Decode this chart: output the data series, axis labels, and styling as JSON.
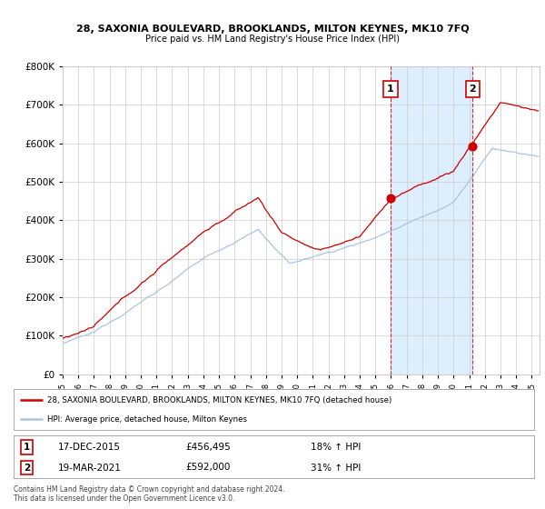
{
  "title_line1": "28, SAXONIA BOULEVARD, BROOKLANDS, MILTON KEYNES, MK10 7FQ",
  "title_line2": "Price paid vs. HM Land Registry's House Price Index (HPI)",
  "sale1_date_num": 2015.96,
  "sale1_price": 456495,
  "sale1_label": "17-DEC-2015",
  "sale1_price_str": "£456,495",
  "sale1_pct": "18% ↑ HPI",
  "sale2_date_num": 2021.22,
  "sale2_price": 592000,
  "sale2_label": "19-MAR-2021",
  "sale2_price_str": "£592,000",
  "sale2_pct": "31% ↑ HPI",
  "legend1": "28, SAXONIA BOULEVARD, BROOKLANDS, MILTON KEYNES, MK10 7FQ (detached house)",
  "legend2": "HPI: Average price, detached house, Milton Keynes",
  "footnote1": "Contains HM Land Registry data © Crown copyright and database right 2024.",
  "footnote2": "This data is licensed under the Open Government Licence v3.0.",
  "hpi_color": "#aac4e0",
  "price_color": "#cc0000",
  "shade_color": "#ddeeff",
  "grid_color": "#cccccc",
  "bg_color": "#ffffff",
  "xmin": 1995,
  "xmax": 2025.5,
  "ymin": 0,
  "ymax": 800000
}
